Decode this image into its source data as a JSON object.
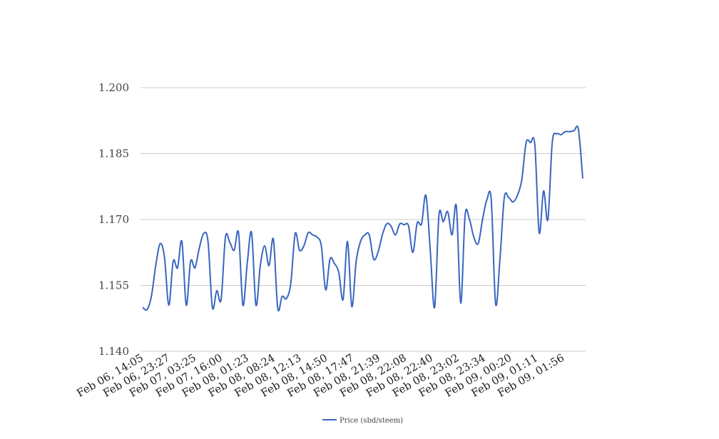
{
  "chart_data": {
    "type": "line",
    "ylim": [
      1.14,
      1.2
    ],
    "y_ticks": [
      "1.140",
      "1.155",
      "1.170",
      "1.185",
      "1.200"
    ],
    "x_tick_labels": [
      "Feb 06, 14:05",
      "Feb 06, 23:27",
      "Feb 07, 03:25",
      "Feb 07, 16:00",
      "Feb 08, 01:23",
      "Feb 08, 08:24",
      "Feb 08, 12:13",
      "Feb 08, 14:50",
      "Feb 08, 17:47",
      "Feb 08, 21:39",
      "Feb 08, 22:08",
      "Feb 08, 22:40",
      "Feb 08, 23:02",
      "Feb 08, 23:34",
      "Feb 09, 00:20",
      "Feb 09, 01:11",
      "Feb 09, 01:56"
    ],
    "grid": true,
    "legend": "bottom",
    "series": [
      {
        "name": "Price (sbd/steem)",
        "color": "#3a66bf",
        "values": [
          1.15,
          1.1495,
          1.1525,
          1.1595,
          1.1645,
          1.1615,
          1.1505,
          1.1605,
          1.159,
          1.165,
          1.1505,
          1.1605,
          1.159,
          1.1635,
          1.1668,
          1.165,
          1.15,
          1.1538,
          1.1518,
          1.166,
          1.1648,
          1.163,
          1.167,
          1.1505,
          1.16,
          1.167,
          1.1505,
          1.1595,
          1.164,
          1.1595,
          1.1655,
          1.1498,
          1.1525,
          1.152,
          1.1555,
          1.1668,
          1.163,
          1.164,
          1.167,
          1.1665,
          1.166,
          1.164,
          1.154,
          1.161,
          1.16,
          1.158,
          1.1518,
          1.165,
          1.1502,
          1.1605,
          1.165,
          1.1665,
          1.1665,
          1.161,
          1.1625,
          1.1665,
          1.169,
          1.1685,
          1.1665,
          1.169,
          1.1688,
          1.1686,
          1.1625,
          1.1692,
          1.169,
          1.1755,
          1.163,
          1.15,
          1.171,
          1.1695,
          1.1718,
          1.1665,
          1.173,
          1.151,
          1.171,
          1.17,
          1.166,
          1.1645,
          1.17,
          1.1745,
          1.1745,
          1.1508,
          1.161,
          1.175,
          1.175,
          1.174,
          1.1755,
          1.179,
          1.1875,
          1.1875,
          1.187,
          1.167,
          1.1765,
          1.17,
          1.1875,
          1.1895,
          1.1893,
          1.19,
          1.19,
          1.1902,
          1.1905,
          1.1793
        ]
      }
    ]
  }
}
